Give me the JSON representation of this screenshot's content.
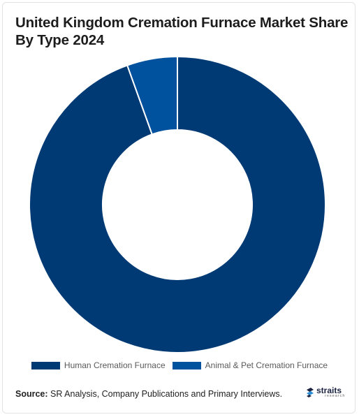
{
  "title": "United Kingdom Cremation Furnace Market Share By Type 2024",
  "source_label": "Source:",
  "source_text": " SR Analysis, Company Publications and Primary Interviews.",
  "logo": {
    "word": "straits",
    "sub": "research"
  },
  "colors": {
    "human": "#003a75",
    "animal": "#00519e"
  },
  "chart_data": {
    "type": "pie",
    "variant": "donut",
    "categories": [
      "Human Cremation Furnace",
      "Animal & Pet Cremation Furnace"
    ],
    "values": [
      94.5,
      5.5
    ],
    "unit": "%",
    "legend": "bottom"
  }
}
